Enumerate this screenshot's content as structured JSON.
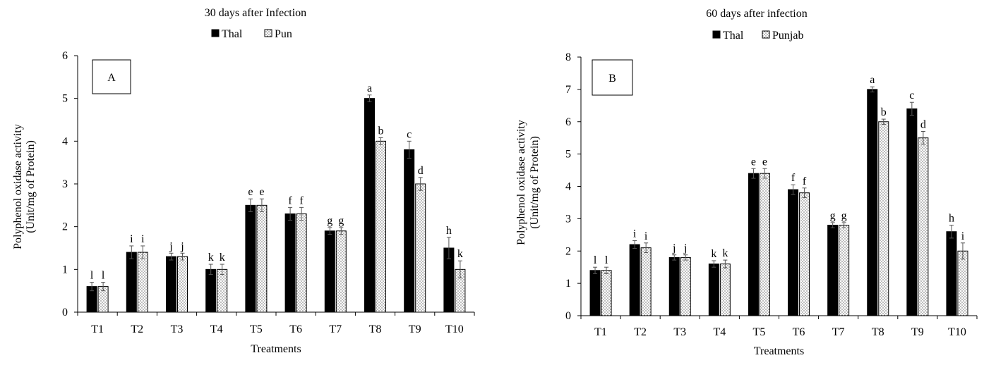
{
  "chart_data": [
    {
      "type": "bar",
      "panel_label": "A",
      "title": "30 days after Infection",
      "xlabel": "Treatments",
      "ylabel": [
        "Polyphenol oxidase activity",
        "(Unit/mg of Protein)"
      ],
      "ylim": [
        0,
        6
      ],
      "yticks": [
        0,
        1,
        2,
        3,
        4,
        5,
        6
      ],
      "grid": false,
      "legend_position": "top-center",
      "categories": [
        "T1",
        "T2",
        "T3",
        "T4",
        "T5",
        "T6",
        "T7",
        "T8",
        "T9",
        "T10"
      ],
      "series": [
        {
          "name": "Thal",
          "color": "#000000",
          "pattern": "solid",
          "values": [
            0.6,
            1.4,
            1.3,
            1.0,
            2.5,
            2.3,
            1.9,
            5.0,
            3.8,
            1.5
          ],
          "errors": [
            0.1,
            0.15,
            0.08,
            0.12,
            0.15,
            0.15,
            0.08,
            0.08,
            0.2,
            0.25
          ],
          "letters": [
            "l",
            "i",
            "j",
            "k",
            "e",
            "f",
            "g",
            "a",
            "c",
            "h"
          ]
        },
        {
          "name": "Pun",
          "color": "#ffffff",
          "pattern": "dotted",
          "values": [
            0.6,
            1.4,
            1.3,
            1.0,
            2.5,
            2.3,
            1.9,
            4.0,
            3.0,
            1.0
          ],
          "errors": [
            0.1,
            0.15,
            0.08,
            0.12,
            0.15,
            0.15,
            0.08,
            0.08,
            0.15,
            0.2
          ],
          "letters": [
            "l",
            "i",
            "j",
            "k",
            "e",
            "f",
            "g",
            "b",
            "d",
            "k"
          ]
        }
      ]
    },
    {
      "type": "bar",
      "panel_label": "B",
      "title": "60 days after infection",
      "xlabel": "Treatments",
      "ylabel": [
        "Polyphenol oxidase activity",
        "(Unit/mg of Protein)"
      ],
      "ylim": [
        0,
        8
      ],
      "yticks": [
        0,
        1,
        2,
        3,
        4,
        5,
        6,
        7,
        8
      ],
      "grid": false,
      "legend_position": "top-center",
      "categories": [
        "T1",
        "T2",
        "T3",
        "T4",
        "T5",
        "T6",
        "T7",
        "T8",
        "T9",
        "T10"
      ],
      "series": [
        {
          "name": "Thal",
          "color": "#000000",
          "pattern": "solid",
          "values": [
            1.4,
            2.2,
            1.8,
            1.6,
            4.4,
            3.9,
            2.8,
            7.0,
            6.4,
            2.6
          ],
          "errors": [
            0.1,
            0.12,
            0.08,
            0.1,
            0.15,
            0.15,
            0.08,
            0.08,
            0.2,
            0.2
          ],
          "letters": [
            "l",
            "i",
            "j",
            "k",
            "e",
            "f",
            "g",
            "a",
            "c",
            "h"
          ]
        },
        {
          "name": "Punjab",
          "color": "#ffffff",
          "pattern": "dotted",
          "values": [
            1.4,
            2.1,
            1.8,
            1.6,
            4.4,
            3.8,
            2.8,
            6.0,
            5.5,
            2.0
          ],
          "errors": [
            0.1,
            0.15,
            0.08,
            0.12,
            0.15,
            0.15,
            0.08,
            0.08,
            0.2,
            0.25
          ],
          "letters": [
            "l",
            "i",
            "j",
            "k",
            "e",
            "f",
            "g",
            "b",
            "d",
            "i"
          ]
        }
      ]
    }
  ]
}
